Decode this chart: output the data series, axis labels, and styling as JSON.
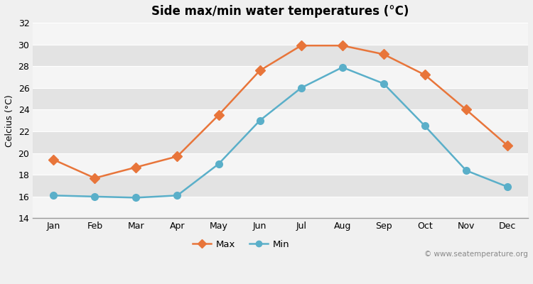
{
  "title": "Side max/min water temperatures (°C)",
  "xlabel": "",
  "ylabel": "Celcius (°C)",
  "months": [
    "Jan",
    "Feb",
    "Mar",
    "Apr",
    "May",
    "Jun",
    "Jul",
    "Aug",
    "Sep",
    "Oct",
    "Nov",
    "Dec"
  ],
  "max_temps": [
    19.4,
    17.7,
    18.7,
    19.7,
    23.5,
    27.6,
    29.9,
    29.9,
    29.1,
    27.2,
    24.0,
    20.7
  ],
  "min_temps": [
    16.1,
    16.0,
    15.9,
    16.1,
    19.0,
    23.0,
    26.0,
    27.9,
    26.4,
    22.5,
    18.4,
    16.9
  ],
  "max_color": "#e8753a",
  "min_color": "#5aafc9",
  "background_color": "#f0f0f0",
  "plot_bg_color": "#ebebeb",
  "stripe_color_light": "#f5f5f5",
  "stripe_color_dark": "#e3e3e3",
  "ylim": [
    14,
    32
  ],
  "yticks": [
    14,
    16,
    18,
    20,
    22,
    24,
    26,
    28,
    30,
    32
  ],
  "watermark": "© www.seatemperature.org",
  "max_marker": "D",
  "min_marker": "o",
  "marker_size_max": 7,
  "marker_size_min": 7,
  "line_width": 1.8,
  "title_fontsize": 12,
  "tick_fontsize": 9,
  "ylabel_fontsize": 9
}
